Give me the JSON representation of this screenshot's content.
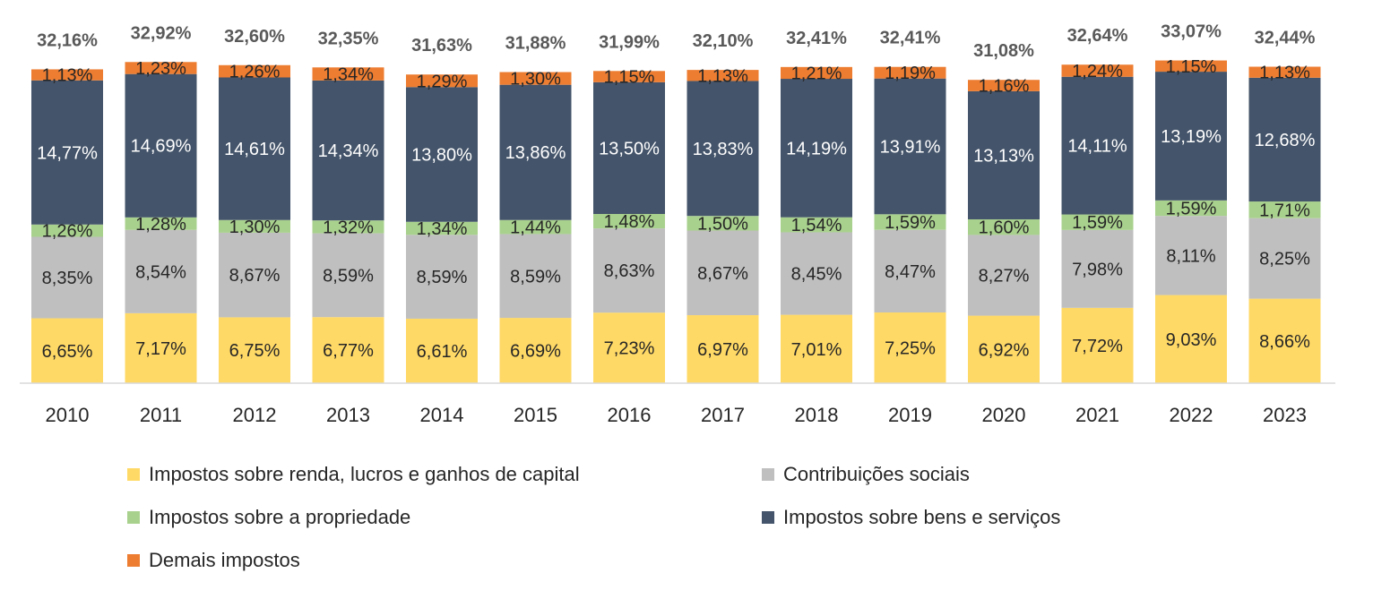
{
  "chart_data": {
    "type": "bar",
    "stacked": true,
    "title": "",
    "xlabel": "",
    "ylabel": "",
    "ylim": [
      0,
      34
    ],
    "grid": false,
    "legend_position": "bottom",
    "categories": [
      "2010",
      "2011",
      "2012",
      "2013",
      "2014",
      "2015",
      "2016",
      "2017",
      "2018",
      "2019",
      "2020",
      "2021",
      "2022",
      "2023"
    ],
    "totals": [
      32.16,
      32.92,
      32.6,
      32.35,
      31.63,
      31.88,
      31.99,
      32.1,
      32.41,
      32.41,
      31.08,
      32.64,
      33.07,
      32.44
    ],
    "total_labels": [
      "32,16%",
      "32,92%",
      "32,60%",
      "32,35%",
      "31,63%",
      "31,88%",
      "31,99%",
      "32,10%",
      "32,41%",
      "32,41%",
      "31,08%",
      "32,64%",
      "33,07%",
      "32,44%"
    ],
    "series": [
      {
        "name": "Impostos sobre renda, lucros e ganhos de capital",
        "color": "#FFD966",
        "label_color": "#262626",
        "values": [
          6.65,
          7.17,
          6.75,
          6.77,
          6.61,
          6.69,
          7.23,
          6.97,
          7.01,
          7.25,
          6.92,
          7.72,
          9.03,
          8.66
        ],
        "labels": [
          "6,65%",
          "7,17%",
          "6,75%",
          "6,77%",
          "6,61%",
          "6,69%",
          "7,23%",
          "6,97%",
          "7,01%",
          "7,25%",
          "6,92%",
          "7,72%",
          "9,03%",
          "8,66%"
        ]
      },
      {
        "name": "Contribuições sociais",
        "color": "#BFBFBF",
        "label_color": "#262626",
        "values": [
          8.35,
          8.54,
          8.67,
          8.59,
          8.59,
          8.59,
          8.63,
          8.67,
          8.45,
          8.47,
          8.27,
          7.98,
          8.11,
          8.25
        ],
        "labels": [
          "8,35%",
          "8,54%",
          "8,67%",
          "8,59%",
          "8,59%",
          "8,59%",
          "8,63%",
          "8,67%",
          "8,45%",
          "8,47%",
          "8,27%",
          "7,98%",
          "8,11%",
          "8,25%"
        ]
      },
      {
        "name": "Impostos sobre a propriedade",
        "color": "#A9D18E",
        "label_color": "#262626",
        "values": [
          1.26,
          1.28,
          1.3,
          1.32,
          1.34,
          1.44,
          1.48,
          1.5,
          1.54,
          1.59,
          1.6,
          1.59,
          1.59,
          1.71
        ],
        "labels": [
          "1,26%",
          "1,28%",
          "1,30%",
          "1,32%",
          "1,34%",
          "1,44%",
          "1,48%",
          "1,50%",
          "1,54%",
          "1,59%",
          "1,60%",
          "1,59%",
          "1,59%",
          "1,71%"
        ]
      },
      {
        "name": "Impostos sobre bens e serviços",
        "color": "#44546A",
        "label_color": "#FFFFFF",
        "values": [
          14.77,
          14.69,
          14.61,
          14.34,
          13.8,
          13.86,
          13.5,
          13.83,
          14.19,
          13.91,
          13.13,
          14.11,
          13.19,
          12.68
        ],
        "labels": [
          "14,77%",
          "14,69%",
          "14,61%",
          "14,34%",
          "13,80%",
          "13,86%",
          "13,50%",
          "13,83%",
          "14,19%",
          "13,91%",
          "13,13%",
          "14,11%",
          "13,19%",
          "12,68%"
        ]
      },
      {
        "name": "Demais impostos",
        "color": "#ED7D31",
        "label_color": "#262626",
        "values": [
          1.13,
          1.23,
          1.26,
          1.34,
          1.29,
          1.3,
          1.15,
          1.13,
          1.21,
          1.19,
          1.16,
          1.24,
          1.15,
          1.13
        ],
        "labels": [
          "1,13%",
          "1,23%",
          "1,26%",
          "1,34%",
          "1,29%",
          "1,30%",
          "1,15%",
          "1,13%",
          "1,21%",
          "1,19%",
          "1,16%",
          "1,24%",
          "1,15%",
          "1,13%"
        ]
      }
    ],
    "legend": {
      "items": [
        {
          "label": "Impostos sobre renda, lucros e ganhos de capital",
          "color": "#FFD966"
        },
        {
          "label": "Contribuições sociais",
          "color": "#BFBFBF"
        },
        {
          "label": "Impostos sobre a propriedade",
          "color": "#A9D18E"
        },
        {
          "label": "Impostos sobre bens e serviços",
          "color": "#44546A"
        },
        {
          "label": "Demais impostos",
          "color": "#ED7D31"
        }
      ]
    }
  }
}
